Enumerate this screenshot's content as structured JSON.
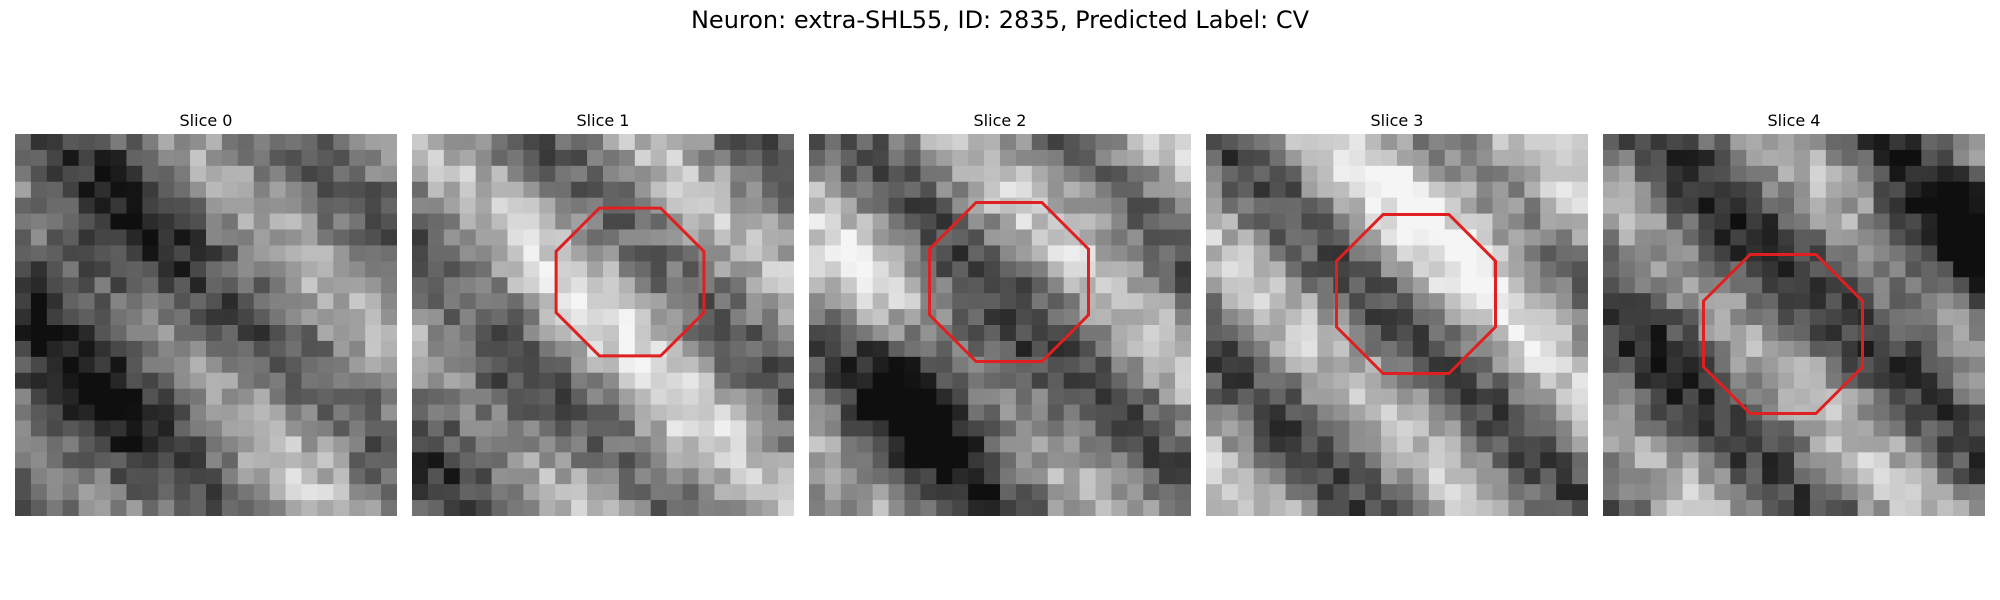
{
  "figure": {
    "title": "Neuron: extra-SHL55, ID: 2835, Predicted Label: CV"
  },
  "panels": [
    {
      "title": "Slice 0",
      "has_octagon": false,
      "seed": 11
    },
    {
      "title": "Slice 1",
      "has_octagon": true,
      "seed": 23
    },
    {
      "title": "Slice 2",
      "has_octagon": true,
      "seed": 37
    },
    {
      "title": "Slice 3",
      "has_octagon": true,
      "seed": 51
    },
    {
      "title": "Slice 4",
      "has_octagon": true,
      "seed": 67
    }
  ],
  "colors": {
    "octagon": "#e02020"
  }
}
